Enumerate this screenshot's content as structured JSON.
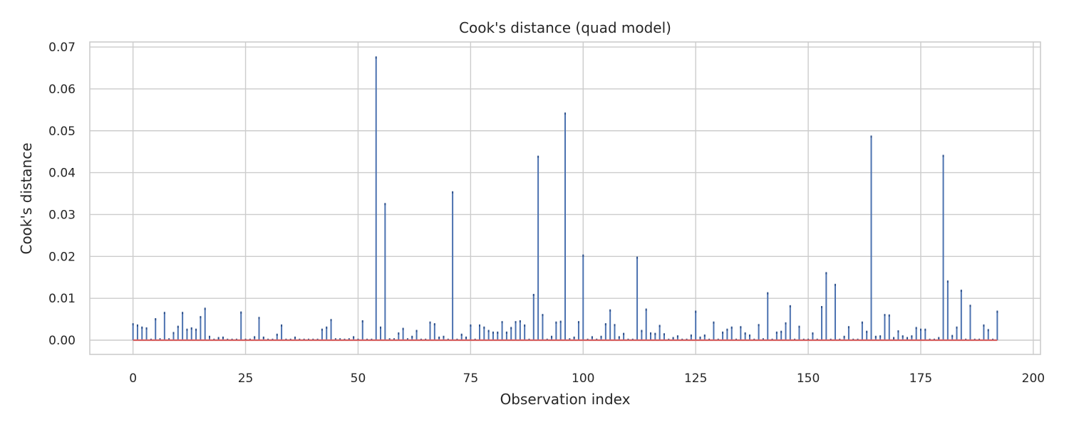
{
  "chart_data": {
    "type": "bar",
    "title": "Cook's distance (quad model)",
    "xlabel": "Observation index",
    "ylabel": "Cook's distance",
    "xlim": [
      -9.6,
      201.6
    ],
    "ylim": [
      -0.0034,
      0.0712
    ],
    "xticks": [
      0,
      25,
      50,
      75,
      100,
      125,
      150,
      175,
      200
    ],
    "xtick_labels": [
      "0",
      "25",
      "50",
      "75",
      "100",
      "125",
      "150",
      "175",
      "200"
    ],
    "yticks": [
      0.0,
      0.01,
      0.02,
      0.03,
      0.04,
      0.05,
      0.06,
      0.07
    ],
    "ytick_labels": [
      "0.00",
      "0.01",
      "0.02",
      "0.03",
      "0.04",
      "0.05",
      "0.06",
      "0.07"
    ],
    "grid": true,
    "baseline": 0,
    "stem_color": "#4c72b0",
    "baseline_color": "#d65f5f",
    "x": [
      0,
      1,
      2,
      3,
      4,
      5,
      6,
      7,
      8,
      9,
      10,
      11,
      12,
      13,
      14,
      15,
      16,
      17,
      18,
      19,
      20,
      21,
      22,
      23,
      24,
      25,
      26,
      27,
      28,
      29,
      30,
      31,
      32,
      33,
      34,
      35,
      36,
      37,
      38,
      39,
      40,
      41,
      42,
      43,
      44,
      45,
      46,
      47,
      48,
      49,
      50,
      51,
      52,
      53,
      54,
      55,
      56,
      57,
      58,
      59,
      60,
      61,
      62,
      63,
      64,
      65,
      66,
      67,
      68,
      69,
      70,
      71,
      72,
      73,
      74,
      75,
      76,
      77,
      78,
      79,
      80,
      81,
      82,
      83,
      84,
      85,
      86,
      87,
      88,
      89,
      90,
      91,
      92,
      93,
      94,
      95,
      96,
      97,
      98,
      99,
      100,
      101,
      102,
      103,
      104,
      105,
      106,
      107,
      108,
      109,
      110,
      111,
      112,
      113,
      114,
      115,
      116,
      117,
      118,
      119,
      120,
      121,
      122,
      123,
      124,
      125,
      126,
      127,
      128,
      129,
      130,
      131,
      132,
      133,
      134,
      135,
      136,
      137,
      138,
      139,
      140,
      141,
      142,
      143,
      144,
      145,
      146,
      147,
      148,
      149,
      150,
      151,
      152,
      153,
      154,
      155,
      156,
      157,
      158,
      159,
      160,
      161,
      162,
      163,
      164,
      165,
      166,
      167,
      168,
      169,
      170,
      171,
      172,
      173,
      174,
      175,
      176,
      177,
      178,
      179,
      180,
      181,
      182,
      183,
      184,
      185,
      186,
      187,
      188,
      189,
      190,
      191,
      192
    ],
    "values": [
      0.0038,
      0.0035,
      0.003,
      0.0028,
      0.0001,
      0.005,
      0.0002,
      0.0065,
      0.0002,
      0.0017,
      0.0032,
      0.0065,
      0.0025,
      0.0028,
      0.0025,
      0.0055,
      0.0075,
      0.0008,
      0.0001,
      0.0005,
      0.0006,
      0.0001,
      0.0001,
      0.0001,
      0.0066,
      0.0001,
      0.0001,
      0.0007,
      0.0053,
      0.0006,
      0.0001,
      0.0001,
      0.0013,
      0.0035,
      0.0001,
      0.0001,
      0.0006,
      0.0001,
      0.0001,
      0.0001,
      0.0001,
      0.0001,
      0.0025,
      0.003,
      0.0048,
      0.0002,
      0.0002,
      0.0001,
      0.0002,
      0.0007,
      0.0001,
      0.0045,
      0.0001,
      0.0001,
      0.0675,
      0.003,
      0.0325,
      0.0002,
      0.0002,
      0.0016,
      0.0027,
      0.0002,
      0.0008,
      0.0022,
      0.0001,
      0.0001,
      0.0042,
      0.0038,
      0.0006,
      0.0008,
      0.0001,
      0.0353,
      0.0001,
      0.0013,
      0.0006,
      0.0035,
      0.0001,
      0.0035,
      0.003,
      0.0022,
      0.0018,
      0.0018,
      0.0043,
      0.0018,
      0.0029,
      0.0043,
      0.0045,
      0.0035,
      0.0001,
      0.0108,
      0.0438,
      0.006,
      0.0001,
      0.0008,
      0.0042,
      0.0044,
      0.0541,
      0.0002,
      0.0006,
      0.0043,
      0.0202,
      0.0001,
      0.0007,
      0.0001,
      0.0008,
      0.0038,
      0.0071,
      0.0036,
      0.0007,
      0.0015,
      0.0001,
      0.0001,
      0.0197,
      0.0022,
      0.0073,
      0.0016,
      0.0015,
      0.0034,
      0.0014,
      0.0001,
      0.0005,
      0.0009,
      0.0001,
      0.0001,
      0.0011,
      0.0068,
      0.0006,
      0.0011,
      0.0001,
      0.0042,
      0.0001,
      0.0018,
      0.0025,
      0.003,
      0.0001,
      0.0031,
      0.0016,
      0.0011,
      0.0001,
      0.0036,
      0.0002,
      0.0112,
      0.0001,
      0.0018,
      0.002,
      0.004,
      0.0081,
      0.0001,
      0.0032,
      0.0001,
      0.0001,
      0.0016,
      0.0001,
      0.0079,
      0.016,
      0.0001,
      0.0132,
      0.0001,
      0.0008,
      0.0031,
      0.0001,
      0.0001,
      0.0042,
      0.002,
      0.0486,
      0.0008,
      0.0009,
      0.006,
      0.0059,
      0.0005,
      0.0021,
      0.0009,
      0.0005,
      0.0009,
      0.0029,
      0.0025,
      0.0025,
      0.0001,
      0.0001,
      0.0005,
      0.044,
      0.014,
      0.001,
      0.003,
      0.0118,
      0.0001,
      0.0082,
      0.0001,
      0.0001,
      0.0035,
      0.0024,
      0.0001,
      0.0068
    ]
  }
}
